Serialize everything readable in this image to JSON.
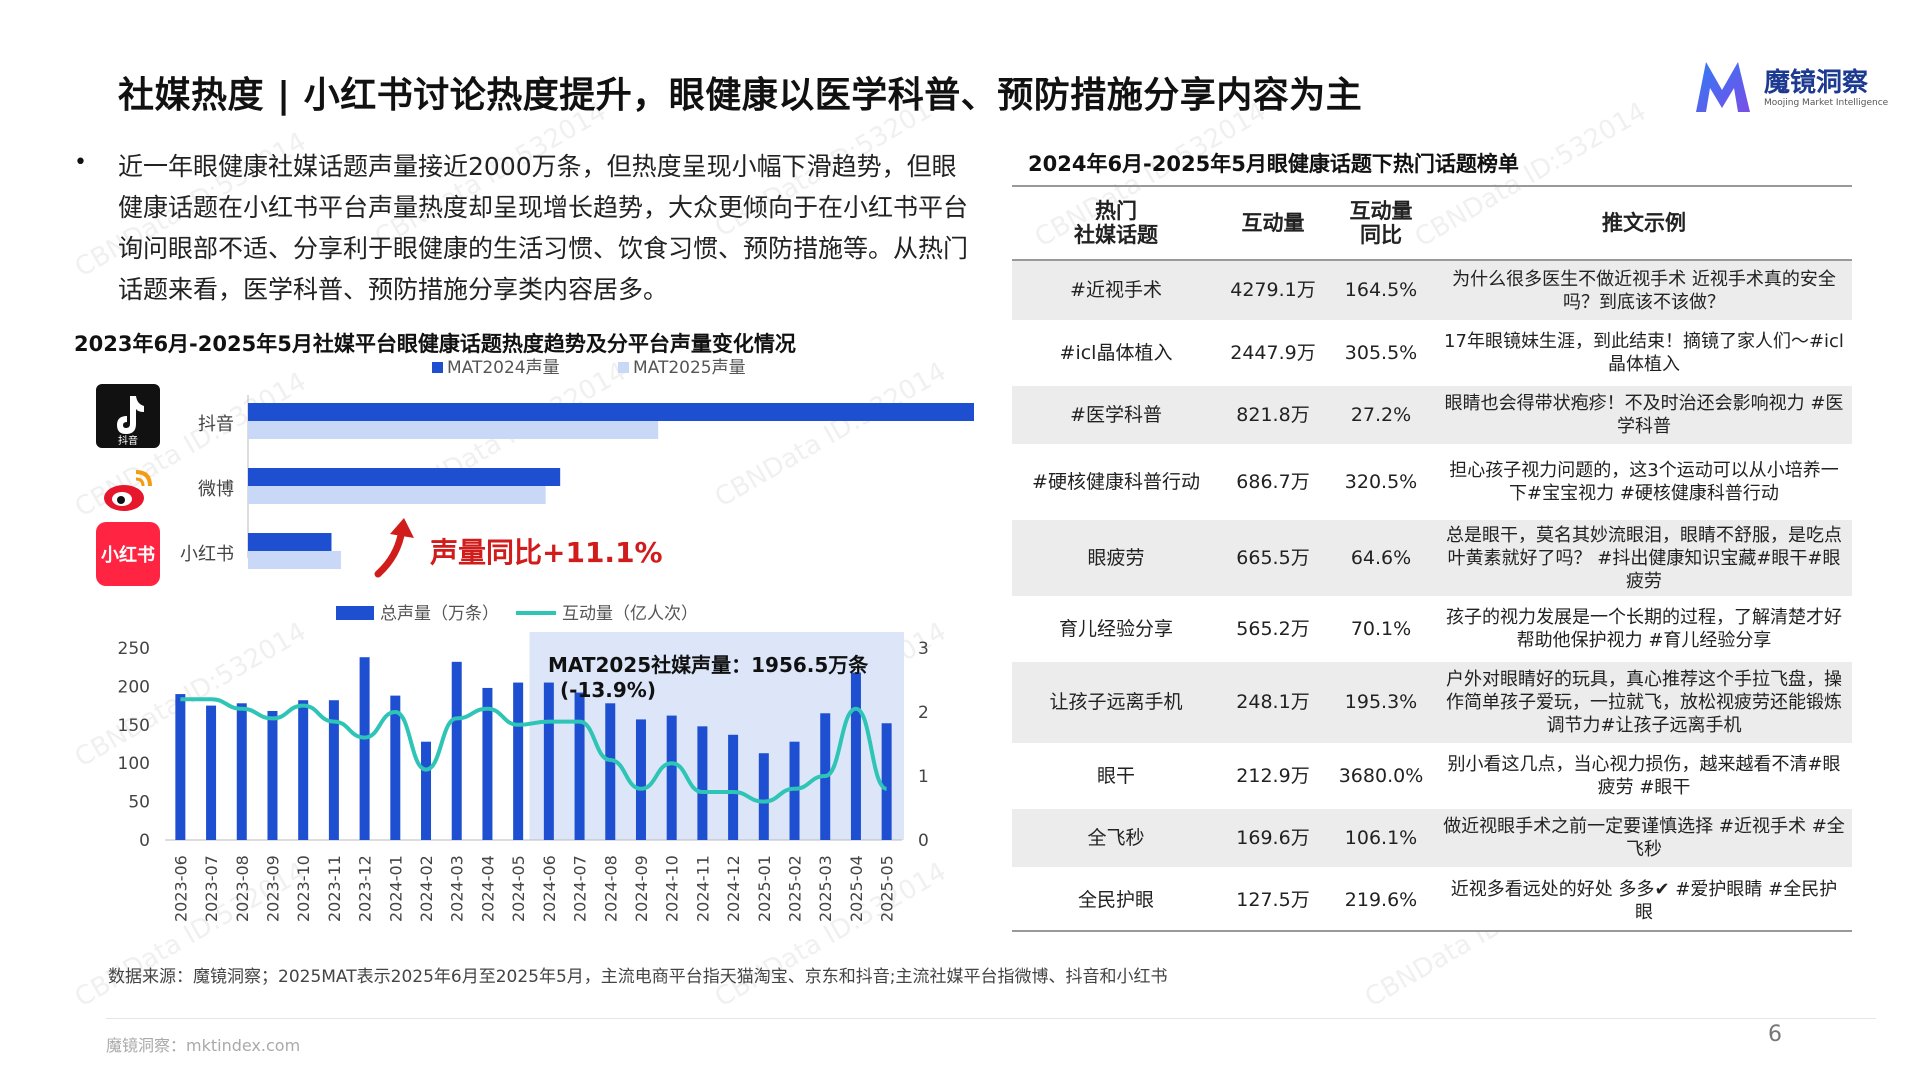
{
  "page": {
    "title": "社媒热度 | 小红书讨论热度提升，眼健康以医学科普、预防措施分享内容为主",
    "logo_name": "魔镜洞察",
    "logo_sub": "Moojing Market Intelligence",
    "bullet": "近一年眼健康社媒话题声量接近2000万条，但热度呈现小幅下滑趋势，但眼健康话题在小红书平台声量热度却呈现增长趋势，大众更倾向于在小红书平台询问眼部不适、分享利于眼健康的生活习惯、饮食习惯、预防措施等。从热门话题来看，医学科普、预防措施分享类内容居多。",
    "chart_title": "2023年6月-2025年5月社媒平台眼健康话题热度趋势及分平台声量变化情况",
    "table_title": "2024年6月-2025年5月眼健康话题下热门话题榜单",
    "source": "数据来源：魔镜洞察；2025MAT表示2025年6月至2025年5月，主流电商平台指天猫淘宝、京东和抖音;主流社媒平台指微博、抖音和小红书",
    "footer": "魔镜洞察：mktindex.com",
    "page_number": "6",
    "watermark": "CBNData ID:532014",
    "colors": {
      "dark_blue": "#1f4fd1",
      "light_blue": "#c9d8f7",
      "teal": "#2ec4b6",
      "highlight": "#dce6f8",
      "red": "#d11c1c"
    }
  },
  "platforms": [
    {
      "name": "抖音",
      "icon": "douyin-icon",
      "icon_text": "抖音"
    },
    {
      "name": "微博",
      "icon": "weibo-icon",
      "icon_text": ""
    },
    {
      "name": "小红书",
      "icon": "xiaohongshu-icon",
      "icon_text": "小红书"
    }
  ],
  "growth_label": "声量同比+11.1%",
  "mat_annotation_line1": "MAT2025社媒声量：1956.5万条",
  "mat_annotation_line2": "(-13.9%)",
  "chart_data": [
    {
      "type": "bar",
      "orientation": "horizontal",
      "categories": [
        "抖音",
        "微博",
        "小红书"
      ],
      "series": [
        {
          "name": "MAT2024声量",
          "values": [
            100,
            43,
            11.5
          ],
          "color": "#1f4fd1"
        },
        {
          "name": "MAT2025声量",
          "values": [
            56.5,
            41,
            12.8
          ],
          "color": "#c9d8f7"
        }
      ],
      "legend": "top",
      "annotation": "声量同比+11.1%"
    },
    {
      "type": "bar+line",
      "categories": [
        "2023-06",
        "2023-07",
        "2023-08",
        "2023-09",
        "2023-10",
        "2023-11",
        "2023-12",
        "2024-01",
        "2024-02",
        "2024-03",
        "2024-04",
        "2024-05",
        "2024-06",
        "2024-07",
        "2024-08",
        "2024-09",
        "2024-10",
        "2024-11",
        "2024-12",
        "2025-01",
        "2025-02",
        "2025-03",
        "2025-04",
        "2025-05"
      ],
      "series": [
        {
          "name": "总声量（万条）",
          "axis": "left",
          "type": "bar",
          "color": "#1f4fd1",
          "values": [
            190,
            175,
            178,
            168,
            182,
            182,
            238,
            188,
            128,
            232,
            198,
            205,
            205,
            192,
            178,
            157,
            162,
            148,
            137,
            113,
            128,
            165,
            218,
            152
          ]
        },
        {
          "name": "互动量（亿人次）",
          "axis": "right",
          "type": "line",
          "color": "#2ec4b6",
          "values": [
            2.2,
            2.2,
            2.05,
            1.9,
            2.1,
            1.85,
            1.6,
            2.0,
            1.1,
            1.9,
            2.05,
            1.8,
            1.85,
            1.85,
            1.25,
            0.8,
            1.2,
            0.75,
            0.75,
            0.6,
            0.8,
            1.0,
            2.05,
            0.8
          ]
        }
      ],
      "ylim": [
        0,
        250
      ],
      "y_ticks": [
        0,
        50,
        100,
        150,
        200,
        250
      ],
      "y2lim": [
        0,
        3
      ],
      "y2_ticks": [
        0,
        1,
        2,
        3
      ],
      "highlight_range": [
        "2024-06",
        "2025-05"
      ],
      "legend": "top"
    }
  ],
  "table": {
    "headers": [
      "热门\n社媒话题",
      "互动量",
      "互动量\n同比",
      "推文示例"
    ],
    "rows": [
      {
        "topic": "#近视手术",
        "interaction": "4279.1万",
        "yoy": "164.5%",
        "post": "为什么很多医生不做近视手术 近视手术真的安全吗？到底该不该做？"
      },
      {
        "topic": "#icl晶体植入",
        "interaction": "2447.9万",
        "yoy": "305.5%",
        "post": "17年眼镜妹生涯，到此结束！摘镜了家人们～#icl晶体植入"
      },
      {
        "topic": "#医学科普",
        "interaction": "821.8万",
        "yoy": "27.2%",
        "post": "眼睛也会得带状疱疹！不及时治还会影响视力 #医学科普"
      },
      {
        "topic": "#硬核健康科普行动",
        "interaction": "686.7万",
        "yoy": "320.5%",
        "post": "担心孩子视力问题的，这3个运动可以从小培养一下#宝宝视力 #硬核健康科普行动"
      },
      {
        "topic": "眼疲劳",
        "interaction": "665.5万",
        "yoy": "64.6%",
        "post": "总是眼干，莫名其妙流眼泪，眼睛不舒服，是吃点叶黄素就好了吗？ #抖出健康知识宝藏#眼干#眼疲劳"
      },
      {
        "topic": "育儿经验分享",
        "interaction": "565.2万",
        "yoy": "70.1%",
        "post": "孩子的视力发展是一个长期的过程，了解清楚才好帮助他保护视力 #育儿经验分享"
      },
      {
        "topic": "让孩子远离手机",
        "interaction": "248.1万",
        "yoy": "195.3%",
        "post": "户外对眼睛好的玩具，真心推荐这个手拉飞盘，操作简单孩子爱玩，一拉就飞，放松视疲劳还能锻炼调节力#让孩子远离手机"
      },
      {
        "topic": "眼干",
        "interaction": "212.9万",
        "yoy": "3680.0%",
        "post": "别小看这几点，当心视力损伤，越来越看不清#眼疲劳 #眼干"
      },
      {
        "topic": "全飞秒",
        "interaction": "169.6万",
        "yoy": "106.1%",
        "post": "做近视眼手术之前一定要谨慎选择 #近视手术 #全飞秒"
      },
      {
        "topic": "全民护眼",
        "interaction": "127.5万",
        "yoy": "219.6%",
        "post": "近视多看远处的好处 多多✔ #爱护眼睛 #全民护眼"
      }
    ]
  }
}
